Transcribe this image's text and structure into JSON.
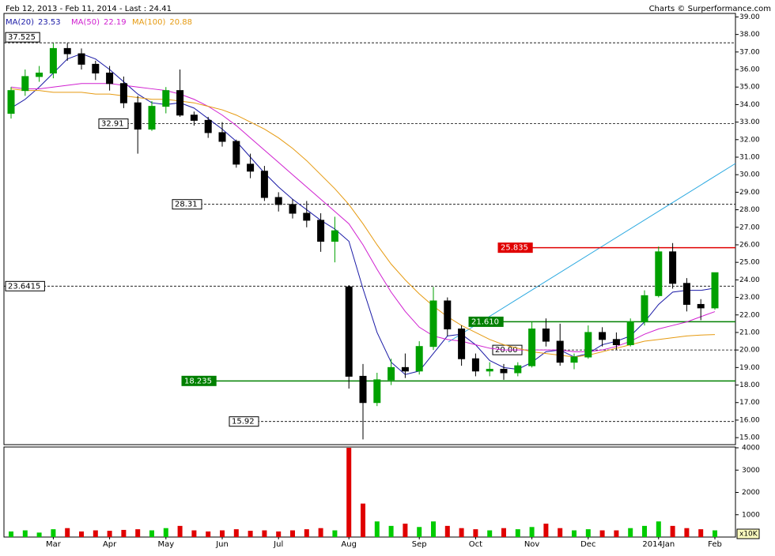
{
  "chart_data": {
    "type": "candlestick",
    "title": "Feb 12, 2013 - Feb 11, 2014 - Last : 24.41",
    "credit": "Charts © Surperformance.com",
    "categories": [
      null,
      null,
      null,
      "Mar",
      null,
      null,
      null,
      "Apr",
      null,
      null,
      null,
      "May",
      null,
      null,
      null,
      "Jun",
      null,
      null,
      null,
      "Jul",
      null,
      null,
      null,
      null,
      "Aug",
      null,
      null,
      null,
      null,
      "Sep",
      null,
      null,
      null,
      "Oct",
      null,
      null,
      null,
      "Nov",
      null,
      null,
      null,
      "Dec",
      null,
      null,
      null,
      null,
      "2014Jan",
      null,
      null,
      null,
      "Feb"
    ],
    "open": [
      33.5,
      34.8,
      35.6,
      35.8,
      37.2,
      36.9,
      36.3,
      35.8,
      35.2,
      34.1,
      32.6,
      33.9,
      34.8,
      33.4,
      33.1,
      32.4,
      31.9,
      30.6,
      30.2,
      28.7,
      28.3,
      27.8,
      27.4,
      26.2,
      23.6,
      18.5,
      17,
      18.3,
      19,
      18.8,
      20.2,
      22.8,
      21.2,
      19.5,
      18.8,
      18.9,
      18.7,
      19.1,
      21.2,
      20.5,
      19.3,
      19.6,
      21,
      20.6,
      20.3,
      21.6,
      23.1,
      25.6,
      23.8,
      22.6,
      22.4
    ],
    "high": [
      35,
      36,
      36.2,
      37.5,
      37.5,
      37.2,
      36.5,
      36.2,
      35.6,
      34.5,
      34.2,
      35,
      36,
      33.6,
      33.3,
      33,
      32,
      31.2,
      30.5,
      29,
      28.6,
      28.5,
      27.8,
      27.6,
      23.7,
      19.2,
      18.7,
      19.5,
      19.8,
      20.5,
      23.6,
      23,
      21.4,
      19.8,
      19.3,
      19.2,
      19.3,
      21.6,
      21.8,
      21.5,
      19.8,
      21.4,
      21.3,
      21,
      21.8,
      23.4,
      25.9,
      26.1,
      24.1,
      22.9,
      24.3
    ],
    "low": [
      33.2,
      34.5,
      35.3,
      35.5,
      36.5,
      36,
      35.4,
      34.8,
      33.8,
      31.2,
      32.5,
      33.5,
      33.3,
      32.8,
      32.1,
      31.6,
      30.4,
      29.8,
      28.5,
      27.9,
      27.5,
      27,
      25.6,
      25,
      17.8,
      14.9,
      16.8,
      18,
      18.4,
      18.6,
      20,
      20.8,
      19.1,
      18.5,
      18.5,
      18.3,
      18.5,
      19,
      20.2,
      19.1,
      18.9,
      19.5,
      20.2,
      20,
      20.2,
      21.4,
      23,
      23.5,
      22.2,
      21.7,
      22.3
    ],
    "close": [
      34.8,
      35.6,
      35.8,
      37.2,
      36.9,
      36.3,
      35.8,
      35.2,
      34.1,
      32.6,
      33.9,
      34.8,
      33.4,
      33.1,
      32.4,
      31.9,
      30.6,
      30.2,
      28.7,
      28.3,
      27.8,
      27.4,
      26.2,
      26.8,
      18.5,
      17,
      18.3,
      19,
      18.8,
      20.2,
      22.8,
      21.2,
      19.5,
      18.8,
      18.9,
      18.7,
      19.1,
      21.2,
      20.5,
      19.3,
      19.6,
      21,
      20.6,
      20.3,
      21.6,
      23.1,
      25.6,
      23.8,
      22.6,
      22.4,
      24.41
    ],
    "up_color": "#00a000",
    "down_color": "#000000",
    "series": [
      {
        "name": "MA(20)",
        "last": 23.53,
        "color": "#1a1aa6",
        "values": [
          33.8,
          34.3,
          35.0,
          35.8,
          36.6,
          36.9,
          36.6,
          36.0,
          35.3,
          34.6,
          34.1,
          34.0,
          34.1,
          33.8,
          33.2,
          32.6,
          31.9,
          31.0,
          30.1,
          29.3,
          28.6,
          28.0,
          27.4,
          26.9,
          26.2,
          23.5,
          21.0,
          19.3,
          18.6,
          18.8,
          19.8,
          20.8,
          20.9,
          20.3,
          19.4,
          19.0,
          18.9,
          19.3,
          19.9,
          20.0,
          19.6,
          19.8,
          20.3,
          20.5,
          20.8,
          21.6,
          22.6,
          23.3,
          23.4,
          23.4,
          23.53
        ]
      },
      {
        "name": "MA(50)",
        "last": 22.19,
        "color": "#d020d0",
        "values": [
          35.0,
          34.9,
          34.9,
          35.0,
          35.1,
          35.2,
          35.2,
          35.2,
          35.1,
          35.0,
          34.9,
          34.8,
          34.6,
          34.3,
          33.9,
          33.4,
          32.8,
          32.1,
          31.4,
          30.7,
          30.0,
          29.3,
          28.6,
          27.9,
          27.2,
          26.0,
          24.6,
          23.3,
          22.2,
          21.3,
          20.8,
          20.6,
          20.5,
          20.3,
          20.1,
          20.0,
          20.0,
          20.0,
          20.0,
          20.0,
          19.9,
          19.9,
          20.0,
          20.2,
          20.5,
          20.9,
          21.2,
          21.4,
          21.6,
          21.9,
          22.19
        ]
      },
      {
        "name": "MA(100)",
        "last": 20.88,
        "color": "#e69a10",
        "values": [
          34.9,
          34.8,
          34.8,
          34.7,
          34.7,
          34.7,
          34.6,
          34.6,
          34.5,
          34.4,
          34.3,
          34.3,
          34.2,
          34.1,
          33.9,
          33.7,
          33.4,
          33.0,
          32.6,
          32.1,
          31.5,
          30.8,
          30.0,
          29.2,
          28.3,
          27.2,
          26.0,
          24.9,
          24.0,
          23.2,
          22.5,
          21.9,
          21.4,
          21.0,
          20.6,
          20.3,
          20.1,
          19.9,
          19.8,
          19.7,
          19.6,
          19.7,
          19.9,
          20.1,
          20.3,
          20.5,
          20.6,
          20.7,
          20.8,
          20.85,
          20.88
        ]
      }
    ],
    "levels": [
      {
        "value": 37.525,
        "label": "37.525",
        "color": "#000000"
      },
      {
        "value": 32.91,
        "label": "32.91",
        "color": "#000000"
      },
      {
        "value": 28.31,
        "label": "28.31",
        "color": "#000000"
      },
      {
        "value": 23.6415,
        "label": "23.6415",
        "color": "#000000"
      },
      {
        "value": 15.92,
        "label": "15.92",
        "color": "#000000"
      },
      {
        "value": 20,
        "label": "20.00",
        "color": "#000000"
      },
      {
        "value": 25.835,
        "label": "25.835",
        "color": "#e00000"
      },
      {
        "value": 21.61,
        "label": "21.610",
        "color": "#008000"
      },
      {
        "value": 18.235,
        "label": "18.235",
        "color": "#008000"
      }
    ],
    "ylim": [
      14.6,
      39.2
    ],
    "yticks": [
      {
        "value": 15,
        "label": "15.00"
      },
      {
        "value": 16,
        "label": "16.00"
      },
      {
        "value": 17,
        "label": "17.00"
      },
      {
        "value": 18,
        "label": "18.00"
      },
      {
        "value": 19,
        "label": "19.00"
      },
      {
        "value": 20,
        "label": "20.00"
      },
      {
        "value": 21,
        "label": "21.00"
      },
      {
        "value": 22,
        "label": "22.00"
      },
      {
        "value": 23,
        "label": "23.00"
      },
      {
        "value": 24,
        "label": "24.00"
      },
      {
        "value": 25,
        "label": "25.00"
      },
      {
        "value": 26,
        "label": "26.00"
      },
      {
        "value": 27,
        "label": "27.00"
      },
      {
        "value": 28,
        "label": "28.00"
      },
      {
        "value": 29,
        "label": "29.00"
      },
      {
        "value": 30,
        "label": "30.00"
      },
      {
        "value": 31,
        "label": "31.00"
      },
      {
        "value": 32,
        "label": "32.00"
      },
      {
        "value": 33,
        "label": "33.00"
      },
      {
        "value": 34,
        "label": "34.00"
      },
      {
        "value": 35,
        "label": "35.00"
      },
      {
        "value": 36,
        "label": "36.00"
      },
      {
        "value": 37,
        "label": "37.00"
      },
      {
        "value": 38,
        "label": "38.00"
      },
      {
        "value": 39,
        "label": "39.00"
      }
    ],
    "volume": [
      250,
      300,
      200,
      350,
      400,
      250,
      300,
      280,
      320,
      350,
      300,
      400,
      500,
      300,
      250,
      300,
      350,
      280,
      300,
      250,
      300,
      350,
      400,
      300,
      4000,
      1500,
      700,
      500,
      600,
      450,
      700,
      500,
      400,
      350,
      300,
      400,
      350,
      450,
      600,
      400,
      300,
      350,
      300,
      300,
      400,
      500,
      700,
      500,
      400,
      350,
      300
    ],
    "volume_unit": "x10K",
    "vlim": [
      0,
      4000
    ],
    "vticks": [
      1000,
      2000,
      3000,
      4000
    ]
  }
}
